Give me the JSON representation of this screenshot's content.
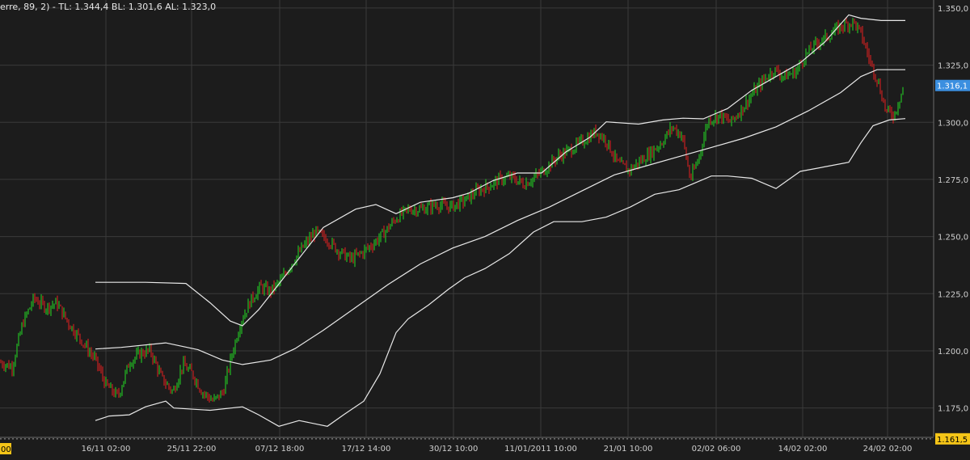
{
  "header": {
    "indicator_text": "erre, 89, 2) -  TL: 1.344,4  BL: 1.301,6  AL: 1.323,0"
  },
  "colors": {
    "background": "#1c1c1c",
    "grid": "#3a3a3a",
    "up_bar": "#22b022",
    "down_bar": "#b82020",
    "band": "#e8e8e8",
    "last_price_tag": "#3b8fe0",
    "low_price_tag": "#f5c518",
    "axis_text": "#cfcfcf"
  },
  "price_tags": {
    "current": "1.316,1",
    "low": "1.161,5"
  },
  "x_axis": {
    "first_label": "00",
    "labels": [
      "16/11 02:00",
      "25/11 22:00",
      "07/12 18:00",
      "17/12 14:00",
      "30/12 10:00",
      "11/01/2011 10:00",
      "21/01 10:00",
      "02/02 06:00",
      "14/02 02:00",
      "24/02 02:00"
    ]
  },
  "chart_data": {
    "type": "bar",
    "subtype": "ohlc-with-bollinger-bands",
    "title": "",
    "xlabel": "",
    "ylabel": "",
    "ylim": [
      1.1625,
      1.3535
    ],
    "y_ticks": [
      1.175,
      1.2,
      1.225,
      1.25,
      1.275,
      1.3,
      1.325,
      1.35
    ],
    "y_tick_labels": [
      "1.175,0",
      "1.200,0",
      "1.225,0",
      "1.250,0",
      "1.275,0",
      "1.300,0",
      "1.325,0",
      "1.350,0"
    ],
    "reference_line": 1.1615,
    "last_price": 1.3161,
    "grid": true,
    "x_index_range": [
      0,
      1130
    ],
    "x_tick_index": [
      131,
      237,
      346,
      453,
      561,
      669,
      777,
      886,
      993,
      1098
    ],
    "close_anchors": [
      [
        0,
        1.195
      ],
      [
        15,
        1.193
      ],
      [
        28,
        1.212
      ],
      [
        42,
        1.223
      ],
      [
        57,
        1.219
      ],
      [
        70,
        1.221
      ],
      [
        85,
        1.212
      ],
      [
        100,
        1.205
      ],
      [
        118,
        1.196
      ],
      [
        131,
        1.185
      ],
      [
        146,
        1.18
      ],
      [
        160,
        1.195
      ],
      [
        174,
        1.199
      ],
      [
        186,
        1.2
      ],
      [
        200,
        1.188
      ],
      [
        214,
        1.182
      ],
      [
        226,
        1.194
      ],
      [
        238,
        1.19
      ],
      [
        250,
        1.182
      ],
      [
        264,
        1.178
      ],
      [
        276,
        1.182
      ],
      [
        288,
        1.2
      ],
      [
        298,
        1.213
      ],
      [
        310,
        1.222
      ],
      [
        322,
        1.228
      ],
      [
        334,
        1.226
      ],
      [
        346,
        1.23
      ],
      [
        360,
        1.238
      ],
      [
        374,
        1.245
      ],
      [
        390,
        1.252
      ],
      [
        404,
        1.249
      ],
      [
        418,
        1.244
      ],
      [
        434,
        1.24
      ],
      [
        448,
        1.243
      ],
      [
        462,
        1.247
      ],
      [
        476,
        1.252
      ],
      [
        490,
        1.258
      ],
      [
        506,
        1.262
      ],
      [
        522,
        1.262
      ],
      [
        540,
        1.264
      ],
      [
        558,
        1.263
      ],
      [
        576,
        1.266
      ],
      [
        590,
        1.27
      ],
      [
        604,
        1.272
      ],
      [
        618,
        1.275
      ],
      [
        632,
        1.276
      ],
      [
        648,
        1.273
      ],
      [
        662,
        1.276
      ],
      [
        676,
        1.28
      ],
      [
        690,
        1.285
      ],
      [
        706,
        1.288
      ],
      [
        722,
        1.292
      ],
      [
        738,
        1.296
      ],
      [
        750,
        1.292
      ],
      [
        764,
        1.282
      ],
      [
        778,
        1.279
      ],
      [
        792,
        1.283
      ],
      [
        806,
        1.287
      ],
      [
        818,
        1.291
      ],
      [
        832,
        1.298
      ],
      [
        844,
        1.294
      ],
      [
        854,
        1.275
      ],
      [
        864,
        1.284
      ],
      [
        876,
        1.301
      ],
      [
        890,
        1.303
      ],
      [
        904,
        1.3
      ],
      [
        918,
        1.306
      ],
      [
        932,
        1.313
      ],
      [
        946,
        1.319
      ],
      [
        958,
        1.323
      ],
      [
        970,
        1.32
      ],
      [
        984,
        1.322
      ],
      [
        998,
        1.33
      ],
      [
        1012,
        1.335
      ],
      [
        1026,
        1.338
      ],
      [
        1040,
        1.342
      ],
      [
        1056,
        1.344
      ],
      [
        1066,
        1.338
      ],
      [
        1076,
        1.327
      ],
      [
        1086,
        1.318
      ],
      [
        1096,
        1.305
      ],
      [
        1106,
        1.303
      ],
      [
        1118,
        1.316
      ]
    ],
    "mid_band": [
      [
        118,
        1.2008
      ],
      [
        150,
        1.2015
      ],
      [
        205,
        1.2035
      ],
      [
        245,
        1.2005
      ],
      [
        275,
        1.196
      ],
      [
        300,
        1.194
      ],
      [
        335,
        1.196
      ],
      [
        365,
        1.201
      ],
      [
        400,
        1.209
      ],
      [
        440,
        1.219
      ],
      [
        480,
        1.229
      ],
      [
        520,
        1.238
      ],
      [
        560,
        1.245
      ],
      [
        600,
        1.25
      ],
      [
        640,
        1.257
      ],
      [
        680,
        1.263
      ],
      [
        720,
        1.27
      ],
      [
        760,
        1.277
      ],
      [
        800,
        1.281
      ],
      [
        840,
        1.285
      ],
      [
        880,
        1.289
      ],
      [
        920,
        1.293
      ],
      [
        960,
        1.298
      ],
      [
        1000,
        1.305
      ],
      [
        1040,
        1.313
      ],
      [
        1065,
        1.32
      ],
      [
        1085,
        1.323
      ],
      [
        1120,
        1.323
      ]
    ],
    "upper_band": [
      [
        118,
        1.23
      ],
      [
        180,
        1.23
      ],
      [
        230,
        1.2295
      ],
      [
        260,
        1.221
      ],
      [
        285,
        1.213
      ],
      [
        300,
        1.211
      ],
      [
        320,
        1.218
      ],
      [
        360,
        1.236
      ],
      [
        400,
        1.254
      ],
      [
        440,
        1.262
      ],
      [
        465,
        1.264
      ],
      [
        490,
        1.26
      ],
      [
        520,
        1.265
      ],
      [
        560,
        1.267
      ],
      [
        580,
        1.269
      ],
      [
        610,
        1.2745
      ],
      [
        640,
        1.2778
      ],
      [
        670,
        1.2778
      ],
      [
        700,
        1.287
      ],
      [
        730,
        1.2935
      ],
      [
        750,
        1.3002
      ],
      [
        790,
        1.2992
      ],
      [
        820,
        1.301
      ],
      [
        845,
        1.3018
      ],
      [
        870,
        1.3015
      ],
      [
        900,
        1.306
      ],
      [
        930,
        1.314
      ],
      [
        960,
        1.32
      ],
      [
        990,
        1.326
      ],
      [
        1020,
        1.335
      ],
      [
        1050,
        1.347
      ],
      [
        1065,
        1.3455
      ],
      [
        1090,
        1.3445
      ],
      [
        1120,
        1.3445
      ]
    ],
    "lower_band": [
      [
        118,
        1.1695
      ],
      [
        135,
        1.1715
      ],
      [
        160,
        1.172
      ],
      [
        180,
        1.1755
      ],
      [
        205,
        1.178
      ],
      [
        215,
        1.175
      ],
      [
        260,
        1.174
      ],
      [
        300,
        1.1755
      ],
      [
        320,
        1.172
      ],
      [
        345,
        1.167
      ],
      [
        370,
        1.1695
      ],
      [
        405,
        1.167
      ],
      [
        425,
        1.172
      ],
      [
        450,
        1.178
      ],
      [
        470,
        1.19
      ],
      [
        490,
        1.208
      ],
      [
        505,
        1.214
      ],
      [
        530,
        1.22
      ],
      [
        555,
        1.227
      ],
      [
        575,
        1.232
      ],
      [
        600,
        1.236
      ],
      [
        630,
        1.2425
      ],
      [
        660,
        1.252
      ],
      [
        685,
        1.2565
      ],
      [
        720,
        1.2565
      ],
      [
        750,
        1.2585
      ],
      [
        780,
        1.263
      ],
      [
        810,
        1.2685
      ],
      [
        840,
        1.2705
      ],
      [
        860,
        1.2735
      ],
      [
        880,
        1.2765
      ],
      [
        900,
        1.2765
      ],
      [
        930,
        1.2755
      ],
      [
        960,
        1.271
      ],
      [
        990,
        1.2785
      ],
      [
        1020,
        1.2805
      ],
      [
        1050,
        1.2825
      ],
      [
        1065,
        1.291
      ],
      [
        1080,
        1.2985
      ],
      [
        1100,
        1.301
      ],
      [
        1120,
        1.3016
      ]
    ],
    "series": [
      {
        "name": "TL",
        "value": 1.3444
      },
      {
        "name": "BL",
        "value": 1.3016
      },
      {
        "name": "AL",
        "value": 1.323
      }
    ]
  }
}
